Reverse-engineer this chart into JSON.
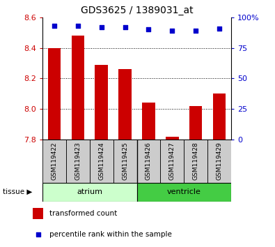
{
  "title": "GDS3625 / 1389031_at",
  "samples": [
    "GSM119422",
    "GSM119423",
    "GSM119424",
    "GSM119425",
    "GSM119426",
    "GSM119427",
    "GSM119428",
    "GSM119429"
  ],
  "bar_values": [
    8.4,
    8.48,
    8.29,
    8.26,
    8.04,
    7.82,
    8.02,
    8.1
  ],
  "percentile_values": [
    93,
    93,
    92,
    92,
    90,
    89,
    89,
    91
  ],
  "ylim_left": [
    7.8,
    8.6
  ],
  "ylim_right": [
    0,
    100
  ],
  "yticks_left": [
    7.8,
    8.0,
    8.2,
    8.4,
    8.6
  ],
  "yticks_right": [
    0,
    25,
    50,
    75,
    100
  ],
  "yticklabels_right": [
    "0",
    "25",
    "50",
    "75",
    "100%"
  ],
  "bar_color": "#cc0000",
  "dot_color": "#0000cc",
  "bar_bottom": 7.8,
  "tick_box_color": "#cccccc",
  "atrium_color": "#ccffcc",
  "ventricle_color": "#44cc44",
  "legend_labels": [
    "transformed count",
    "percentile rank within the sample"
  ],
  "legend_colors": [
    "#cc0000",
    "#0000cc"
  ],
  "left_tick_color": "#cc0000",
  "right_tick_color": "#0000cc",
  "fig_width": 3.95,
  "fig_height": 3.54,
  "dpi": 100
}
